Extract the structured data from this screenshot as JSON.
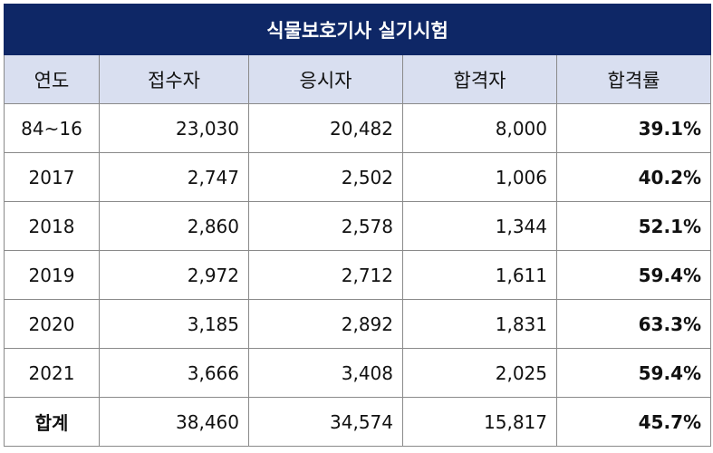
{
  "title": "식물보호기사 실기시험",
  "headers": [
    "연도",
    "접수자",
    "응시자",
    "합격자",
    "합격률"
  ],
  "rows": [
    {
      "year": "84~16",
      "applicants": "23,030",
      "examinees": "20,482",
      "passers": "8,000",
      "rate": "39.1%"
    },
    {
      "year": "2017",
      "applicants": "2,747",
      "examinees": "2,502",
      "passers": "1,006",
      "rate": "40.2%"
    },
    {
      "year": "2018",
      "applicants": "2,860",
      "examinees": "2,578",
      "passers": "1,344",
      "rate": "52.1%"
    },
    {
      "year": "2019",
      "applicants": "2,972",
      "examinees": "2,712",
      "passers": "1,611",
      "rate": "59.4%"
    },
    {
      "year": "2020",
      "applicants": "3,185",
      "examinees": "2,892",
      "passers": "1,831",
      "rate": "63.3%"
    },
    {
      "year": "2021",
      "applicants": "3,666",
      "examinees": "3,408",
      "passers": "2,025",
      "rate": "59.4%"
    }
  ],
  "total": {
    "label": "합계",
    "applicants": "38,460",
    "examinees": "34,574",
    "passers": "15,817",
    "rate": "45.7%"
  }
}
